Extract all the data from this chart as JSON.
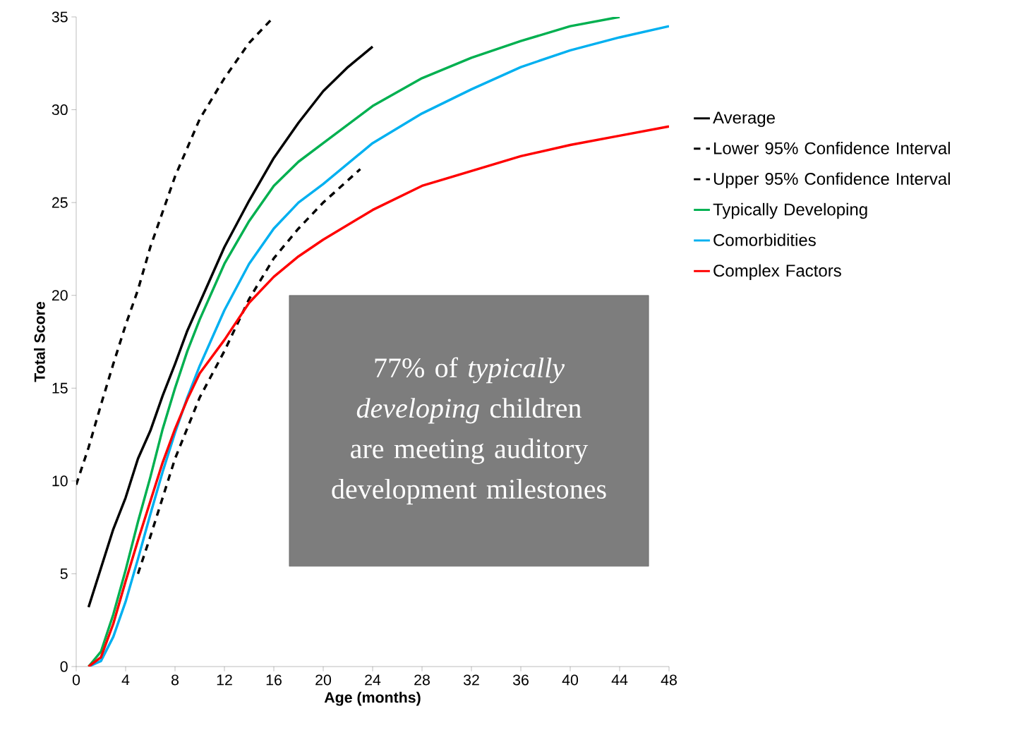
{
  "chart_data": {
    "type": "line",
    "xlabel": "Age (months)",
    "ylabel": "Total Score",
    "xlim": [
      0,
      48
    ],
    "ylim": [
      0,
      35
    ],
    "xticks": [
      0,
      4,
      8,
      12,
      16,
      20,
      24,
      28,
      32,
      36,
      40,
      44,
      48
    ],
    "yticks": [
      0,
      5,
      10,
      15,
      20,
      25,
      30,
      35
    ],
    "legend": "right",
    "grid": false,
    "marker": "none",
    "annotations": [
      "77% of *typically developing* children are meeting auditory development milestones"
    ],
    "series": [
      {
        "name": "Average",
        "color": "#000000",
        "line_style": "solid",
        "x": [
          1,
          2,
          3,
          4,
          5,
          6,
          7,
          8,
          9,
          10,
          11,
          12,
          14,
          16,
          18,
          20,
          22,
          24
        ],
        "values": [
          3.2,
          5.3,
          7.4,
          9.1,
          11.2,
          12.7,
          14.6,
          16.3,
          18.1,
          19.6,
          21.1,
          22.6,
          25.1,
          27.4,
          29.3,
          31.0,
          32.3,
          33.4
        ]
      },
      {
        "name": "Lower 95% Confidence Interval",
        "color": "#000000",
        "line_style": "dashed",
        "x": [
          5,
          6,
          8,
          10,
          12,
          14,
          16,
          18,
          20,
          22,
          23
        ],
        "values": [
          5.0,
          7.0,
          11.2,
          14.5,
          17.0,
          19.8,
          22.0,
          23.6,
          25.0,
          26.2,
          26.8
        ]
      },
      {
        "name": "Upper 95% Confidence Interval",
        "color": "#000000",
        "line_style": "dashed",
        "x": [
          0,
          1,
          2,
          3,
          4,
          5,
          6,
          7,
          8,
          10,
          12,
          14,
          16
        ],
        "values": [
          9.8,
          11.8,
          14.1,
          16.3,
          18.4,
          20.3,
          22.6,
          24.5,
          26.4,
          29.5,
          31.7,
          33.6,
          35.0
        ]
      },
      {
        "name": "Typically Developing",
        "color": "#00b050",
        "line_style": "solid",
        "x": [
          1,
          2,
          3,
          4,
          5,
          6,
          7,
          8,
          9,
          10,
          12,
          14,
          16,
          18,
          20,
          24,
          28,
          32,
          36,
          40,
          44
        ],
        "values": [
          0,
          0.8,
          2.8,
          5.2,
          7.8,
          10.2,
          12.8,
          15.0,
          17.0,
          18.7,
          21.7,
          24.0,
          25.9,
          27.2,
          28.2,
          30.2,
          31.7,
          32.8,
          33.7,
          34.5,
          35.0
        ]
      },
      {
        "name": "Comorbidities",
        "color": "#00b0f0",
        "line_style": "solid",
        "x": [
          1,
          2,
          3,
          4,
          5,
          6,
          7,
          8,
          9,
          10,
          12,
          14,
          16,
          18,
          20,
          24,
          28,
          32,
          36,
          40,
          44,
          48
        ],
        "values": [
          0,
          0.3,
          1.6,
          3.5,
          5.8,
          8.2,
          10.5,
          12.6,
          14.5,
          16.2,
          19.2,
          21.7,
          23.6,
          25.0,
          26.0,
          28.2,
          29.8,
          31.1,
          32.3,
          33.2,
          33.9,
          34.5
        ]
      },
      {
        "name": "Complex Factors",
        "color": "#ff0000",
        "line_style": "solid",
        "x": [
          1,
          2,
          3,
          4,
          5,
          6,
          7,
          8,
          9,
          10,
          12,
          14,
          16,
          18,
          20,
          24,
          28,
          32,
          36,
          40,
          44,
          48
        ],
        "values": [
          0,
          0.5,
          2.3,
          4.6,
          6.8,
          8.9,
          11.0,
          12.8,
          14.4,
          15.8,
          17.6,
          19.6,
          21.0,
          22.1,
          23.0,
          24.6,
          25.9,
          26.7,
          27.5,
          28.1,
          28.6,
          29.1
        ]
      }
    ]
  }
}
